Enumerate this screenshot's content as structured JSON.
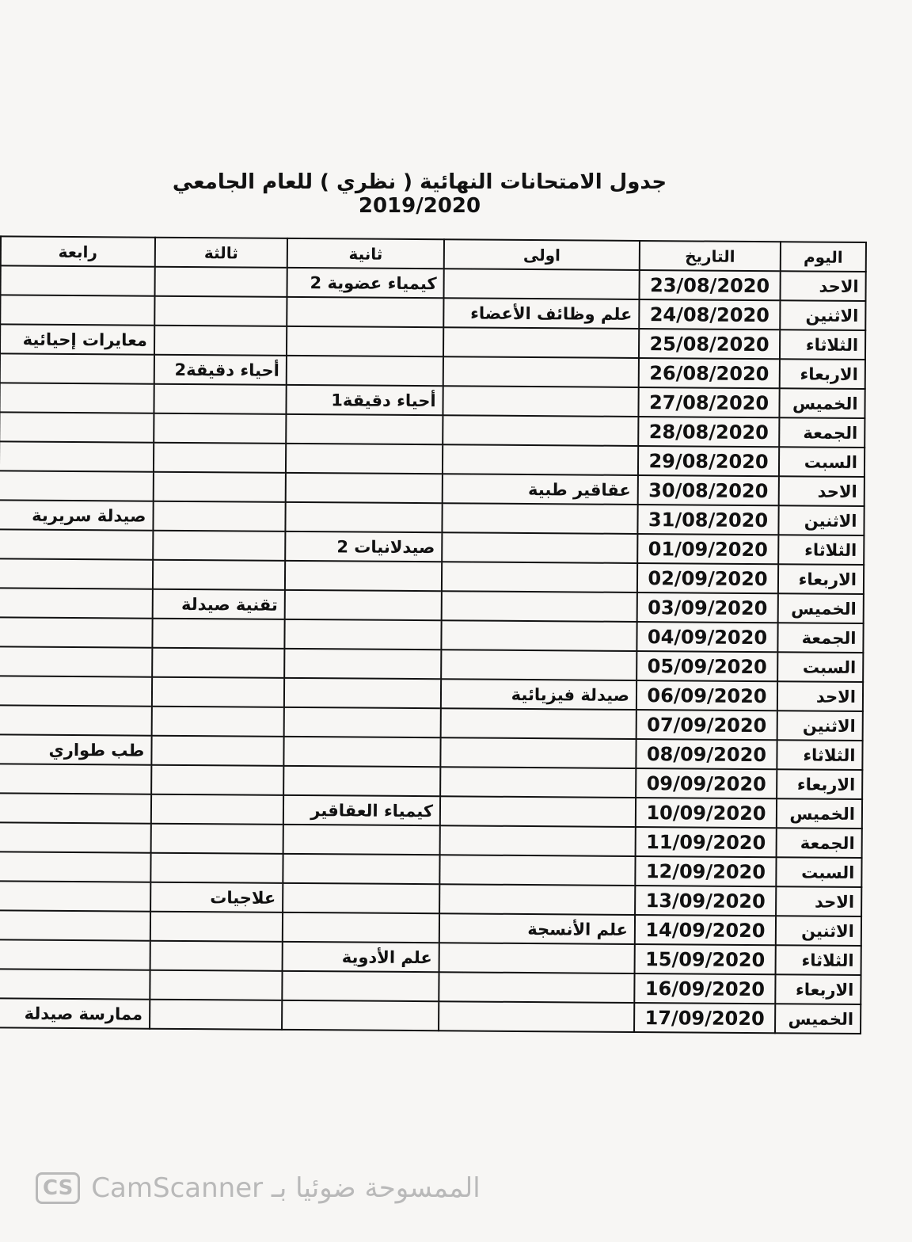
{
  "title": "جدول الامتحانات النهائية ( نظري ) للعام الجامعي 2019/2020",
  "headers": [
    "اليوم",
    "التاريخ",
    "اولى",
    "ثانية",
    "ثالثة",
    "رابعة"
  ],
  "rows": [
    [
      "الاحد",
      "23/08/2020",
      "",
      "كيمياء عضوية 2",
      "",
      ""
    ],
    [
      "الاثنين",
      "24/08/2020",
      "علم وظائف الأعضاء",
      "",
      "",
      ""
    ],
    [
      "الثلاثاء",
      "25/08/2020",
      "",
      "",
      "",
      "معايرات إحيائية"
    ],
    [
      "الاربعاء",
      "26/08/2020",
      "",
      "",
      "أحياء دقيقة2",
      ""
    ],
    [
      "الخميس",
      "27/08/2020",
      "",
      "أحياء دقيقة1",
      "",
      ""
    ],
    [
      "الجمعة",
      "28/08/2020",
      "",
      "",
      "",
      ""
    ],
    [
      "السبت",
      "29/08/2020",
      "",
      "",
      "",
      ""
    ],
    [
      "الاحد",
      "30/08/2020",
      "عقاقير طبية",
      "",
      "",
      ""
    ],
    [
      "الاثنين",
      "31/08/2020",
      "",
      "",
      "",
      "صيدلة سريرية"
    ],
    [
      "الثلاثاء",
      "01/09/2020",
      "",
      "صيدلانيات 2",
      "",
      ""
    ],
    [
      "الاربعاء",
      "02/09/2020",
      "",
      "",
      "",
      ""
    ],
    [
      "الخميس",
      "03/09/2020",
      "",
      "",
      "تقنية صيدلة",
      ""
    ],
    [
      "الجمعة",
      "04/09/2020",
      "",
      "",
      "",
      ""
    ],
    [
      "السبت",
      "05/09/2020",
      "",
      "",
      "",
      ""
    ],
    [
      "الاحد",
      "06/09/2020",
      "صيدلة فيزيائية",
      "",
      "",
      ""
    ],
    [
      "الاثنين",
      "07/09/2020",
      "",
      "",
      "",
      ""
    ],
    [
      "الثلاثاء",
      "08/09/2020",
      "",
      "",
      "",
      "طب طواري"
    ],
    [
      "الاربعاء",
      "09/09/2020",
      "",
      "",
      "",
      ""
    ],
    [
      "الخميس",
      "10/09/2020",
      "",
      "كيمياء العقاقير",
      "",
      ""
    ],
    [
      "الجمعة",
      "11/09/2020",
      "",
      "",
      "",
      ""
    ],
    [
      "السبت",
      "12/09/2020",
      "",
      "",
      "",
      ""
    ],
    [
      "الاحد",
      "13/09/2020",
      "",
      "",
      "علاجيات",
      ""
    ],
    [
      "الاثنين",
      "14/09/2020",
      "علم الأنسجة",
      "",
      "",
      ""
    ],
    [
      "الثلاثاء",
      "15/09/2020",
      "",
      "علم الأدوية",
      "",
      ""
    ],
    [
      "الاربعاء",
      "16/09/2020",
      "",
      "",
      "",
      ""
    ],
    [
      "الخميس",
      "17/09/2020",
      "",
      "",
      "",
      "ممارسة صيدلة"
    ]
  ],
  "watermark": {
    "logo": "CS",
    "text": "CamScanner الممسوحة ضوئيا بـ"
  }
}
